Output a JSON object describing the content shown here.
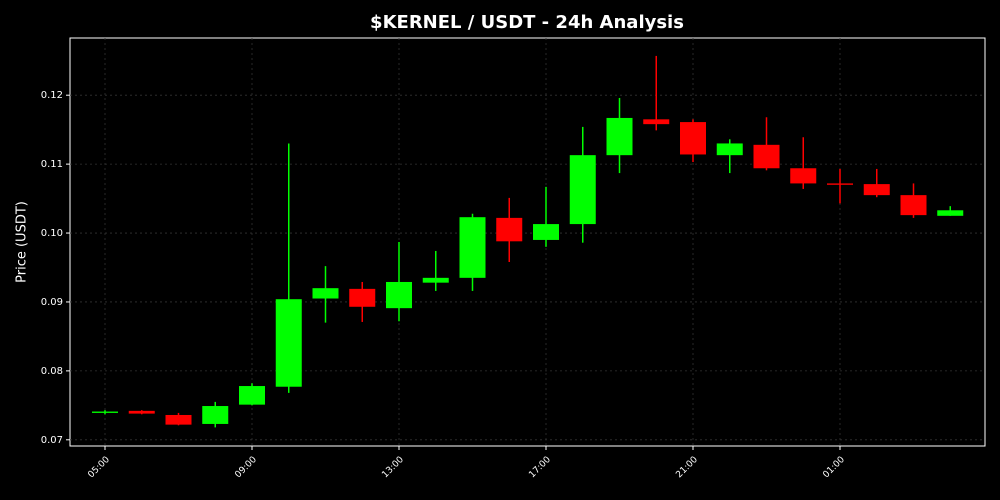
{
  "chart_data": {
    "type": "candlestick",
    "title": "$KERNEL / USDT - 24h Analysis",
    "y_label": "Price (USDT)",
    "categories": [
      "05:00",
      null,
      null,
      null,
      "09:00",
      null,
      null,
      null,
      "13:00",
      null,
      null,
      null,
      "17:00",
      null,
      null,
      null,
      "21:00",
      null,
      null,
      null,
      "01:00",
      null,
      null,
      null
    ],
    "open": [
      0.0739,
      0.0742,
      0.0736,
      0.0723,
      0.0751,
      0.0777,
      0.0905,
      0.0919,
      0.0891,
      0.0928,
      0.0935,
      0.1022,
      0.099,
      0.1013,
      0.1113,
      0.1165,
      0.1161,
      0.1113,
      0.1128,
      0.1094,
      0.1072,
      0.1071,
      0.1055,
      0.1025
    ],
    "high": [
      0.0743,
      0.0743,
      0.0739,
      0.0755,
      0.0782,
      0.113,
      0.0952,
      0.0929,
      0.0987,
      0.0974,
      0.1028,
      0.1051,
      0.1067,
      0.1154,
      0.1196,
      0.1257,
      0.1165,
      0.1136,
      0.1168,
      0.1139,
      0.1093,
      0.1093,
      0.1072,
      0.1039
    ],
    "low": [
      0.0737,
      0.0737,
      0.0721,
      0.0718,
      0.075,
      0.0768,
      0.087,
      0.0871,
      0.0872,
      0.0916,
      0.0916,
      0.0958,
      0.098,
      0.0986,
      0.1087,
      0.1149,
      0.1103,
      0.1087,
      0.1091,
      0.1064,
      0.1043,
      0.1052,
      0.1022,
      0.1025
    ],
    "close": [
      0.0741,
      0.0738,
      0.0722,
      0.0749,
      0.0778,
      0.0904,
      0.092,
      0.0893,
      0.0929,
      0.0935,
      0.1023,
      0.0988,
      0.1013,
      0.1113,
      0.1167,
      0.1158,
      0.1114,
      0.113,
      0.1094,
      0.1072,
      0.107,
      0.1055,
      0.1026,
      0.1033
    ],
    "up_color": "#00ff00",
    "down_color": "#ff0000",
    "ylim": [
      0.0691,
      0.1283
    ],
    "yticks": [
      0.07,
      0.08,
      0.09,
      {
        "value": 0.1,
        "label": "0.10"
      },
      0.11,
      0.12
    ],
    "grid": true
  }
}
